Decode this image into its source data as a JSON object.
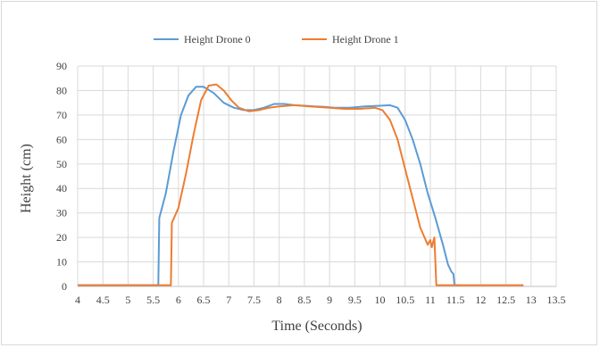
{
  "chart_data": {
    "type": "line",
    "title": "",
    "xlabel": "Time (Seconds)",
    "ylabel": "Height (cm)",
    "xlim": [
      4,
      13.5
    ],
    "ylim": [
      0,
      90
    ],
    "x_ticks": [
      "4",
      "4.5",
      "5",
      "5.5",
      "6",
      "6.5",
      "7",
      "7.5",
      "8",
      "8.5",
      "9",
      "9.5",
      "10",
      "10.5",
      "11",
      "11.5",
      "12",
      "12.5",
      "13",
      "13.5"
    ],
    "y_ticks": [
      "0",
      "10",
      "20",
      "30",
      "40",
      "50",
      "60",
      "70",
      "80",
      "90"
    ],
    "grid": true,
    "legend_position": "top",
    "series": [
      {
        "name": "Height  Drone 0",
        "color": "#5b9bd5",
        "points": [
          [
            4,
            0.5
          ],
          [
            5.6,
            0.5
          ],
          [
            5.62,
            28
          ],
          [
            5.75,
            38
          ],
          [
            5.9,
            55
          ],
          [
            6.05,
            70
          ],
          [
            6.2,
            78
          ],
          [
            6.35,
            81.5
          ],
          [
            6.5,
            81.5
          ],
          [
            6.7,
            79
          ],
          [
            6.9,
            75
          ],
          [
            7.1,
            73
          ],
          [
            7.3,
            72
          ],
          [
            7.5,
            72
          ],
          [
            7.7,
            73
          ],
          [
            7.9,
            74.5
          ],
          [
            8.1,
            74.5
          ],
          [
            8.3,
            74
          ],
          [
            8.5,
            73.8
          ],
          [
            8.7,
            73.5
          ],
          [
            8.9,
            73.3
          ],
          [
            9.1,
            73
          ],
          [
            9.4,
            73
          ],
          [
            9.7,
            73.5
          ],
          [
            10.0,
            73.8
          ],
          [
            10.2,
            74
          ],
          [
            10.35,
            73
          ],
          [
            10.5,
            68
          ],
          [
            10.65,
            60
          ],
          [
            10.8,
            50
          ],
          [
            10.95,
            38
          ],
          [
            11.1,
            28
          ],
          [
            11.25,
            17
          ],
          [
            11.35,
            9
          ],
          [
            11.42,
            6
          ],
          [
            11.46,
            5
          ],
          [
            11.48,
            0.5
          ],
          [
            11.6,
            0.5
          ]
        ]
      },
      {
        "name": "Height  Drone 1",
        "color": "#ed7d31",
        "points": [
          [
            4,
            0.5
          ],
          [
            5.85,
            0.5
          ],
          [
            5.87,
            26
          ],
          [
            6.0,
            32
          ],
          [
            6.15,
            46
          ],
          [
            6.3,
            62
          ],
          [
            6.45,
            76
          ],
          [
            6.6,
            82
          ],
          [
            6.75,
            82.5
          ],
          [
            6.9,
            80
          ],
          [
            7.05,
            76
          ],
          [
            7.2,
            73
          ],
          [
            7.4,
            71.5
          ],
          [
            7.6,
            72
          ],
          [
            7.8,
            73
          ],
          [
            8.0,
            73.5
          ],
          [
            8.3,
            74
          ],
          [
            8.6,
            73.5
          ],
          [
            9.0,
            73
          ],
          [
            9.3,
            72.5
          ],
          [
            9.6,
            72.5
          ],
          [
            9.9,
            73
          ],
          [
            10.05,
            72
          ],
          [
            10.2,
            68
          ],
          [
            10.35,
            60
          ],
          [
            10.5,
            48
          ],
          [
            10.65,
            36
          ],
          [
            10.8,
            24
          ],
          [
            10.95,
            17
          ],
          [
            11.0,
            19
          ],
          [
            11.03,
            16
          ],
          [
            11.08,
            20
          ],
          [
            11.12,
            0.5
          ],
          [
            11.4,
            0.5
          ],
          [
            12.85,
            0.5
          ]
        ]
      }
    ]
  }
}
